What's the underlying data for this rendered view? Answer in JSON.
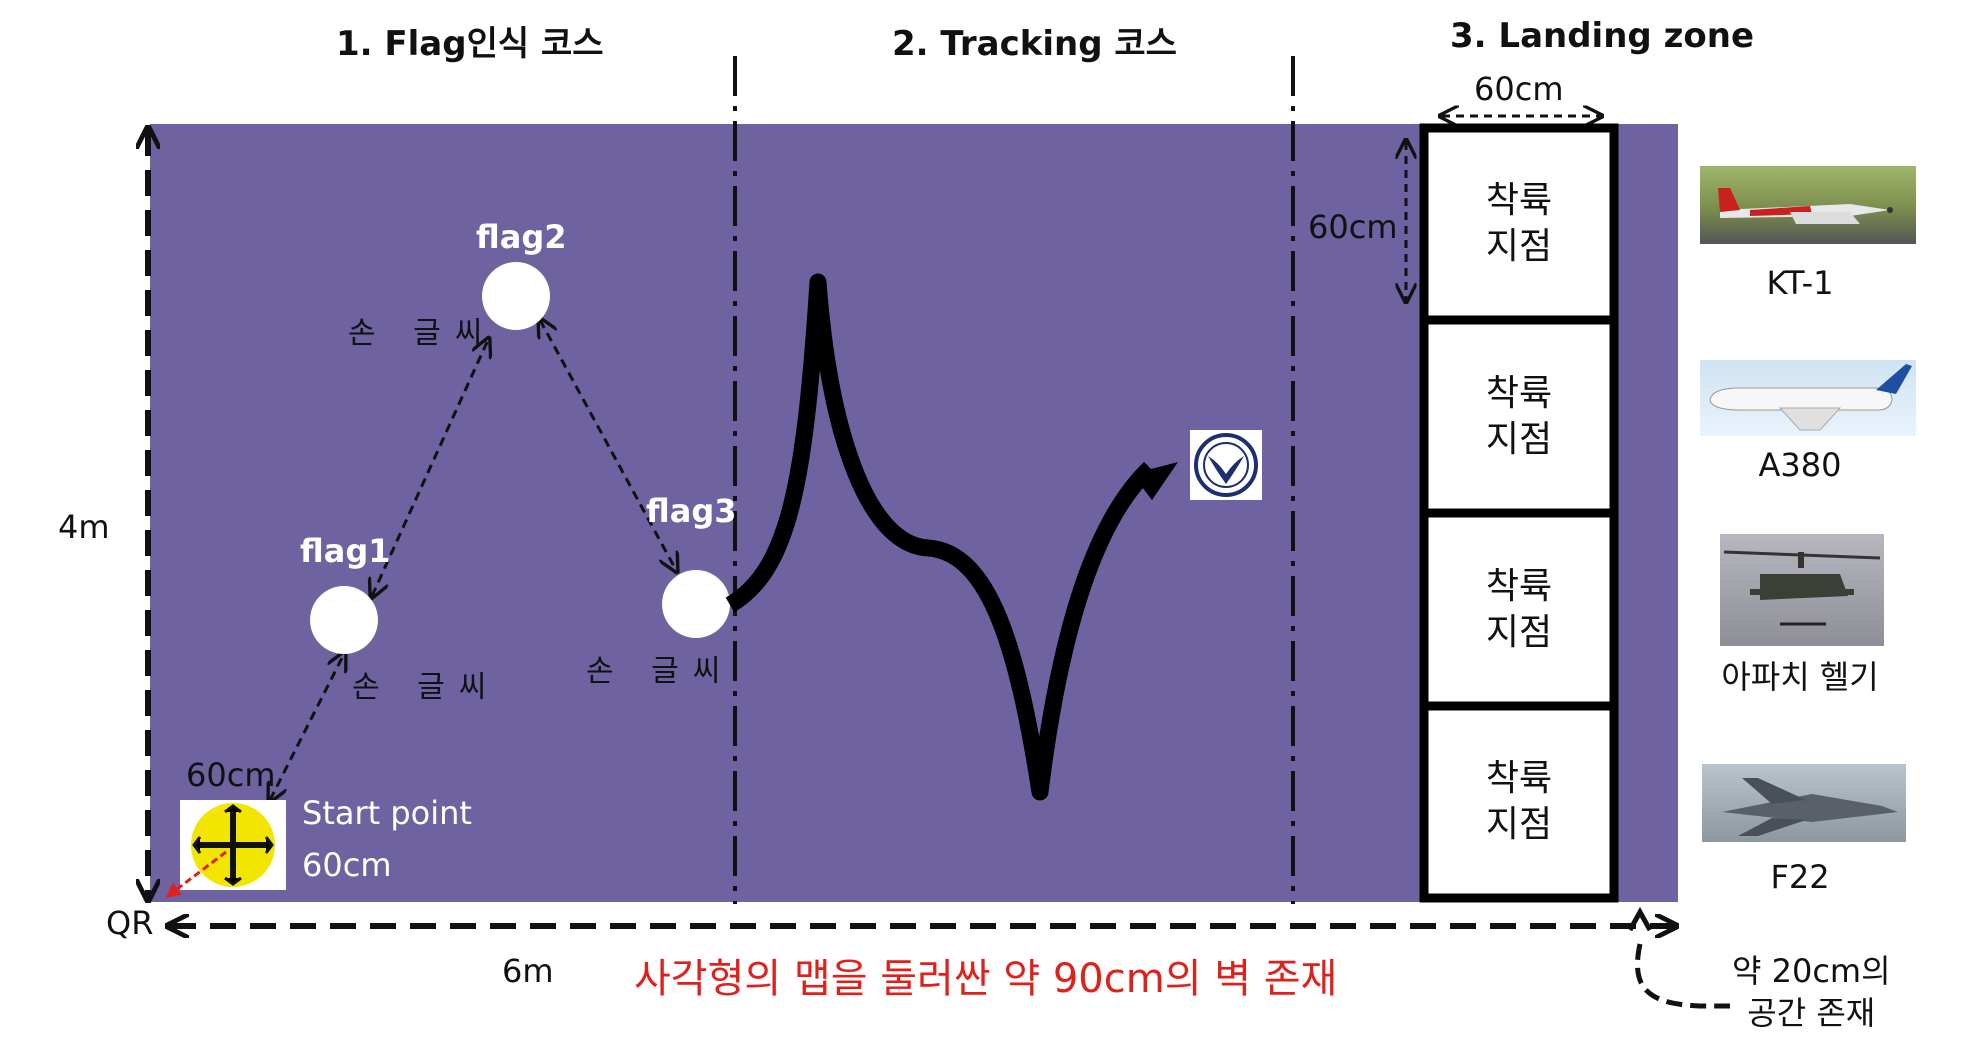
{
  "sections": {
    "course1": "1. Flag인식 코스",
    "course2": "2. Tracking 코스",
    "course3": "3. Landing zone"
  },
  "dimensions": {
    "height": "4m",
    "width": "6m",
    "landing_width": "60cm",
    "landing_height": "60cm",
    "start_top": "60cm",
    "start_side": "60cm"
  },
  "flags": [
    {
      "label": "flag1",
      "note": "손 글씨"
    },
    {
      "label": "flag2",
      "note": "손 글씨"
    },
    {
      "label": "flag3",
      "note": "손 글씨"
    }
  ],
  "start_label": "Start point",
  "qr_label": "QR",
  "landing_cells": [
    {
      "line1": "착륙",
      "line2": "지점"
    },
    {
      "line1": "착륙",
      "line2": "지점"
    },
    {
      "line1": "착륙",
      "line2": "지점"
    },
    {
      "line1": "착륙",
      "line2": "지점"
    }
  ],
  "aircraft": [
    {
      "label": "KT-1",
      "icon": "trainer-plane-photo"
    },
    {
      "label": "A380",
      "icon": "airliner-photo"
    },
    {
      "label": "아파치 헬기",
      "icon": "helicopter-photo"
    },
    {
      "label": "F22",
      "icon": "fighter-jet-photo"
    }
  ],
  "notes": {
    "wall": "사각형의 맵을 둘러싼 약 90cm의 벽 존재",
    "space_line1": "약 20cm의",
    "space_line2": "공간 존재"
  },
  "colors": {
    "field": "#6e63a0",
    "wall_text": "#e0201b",
    "start_marker": "#f2e600"
  }
}
